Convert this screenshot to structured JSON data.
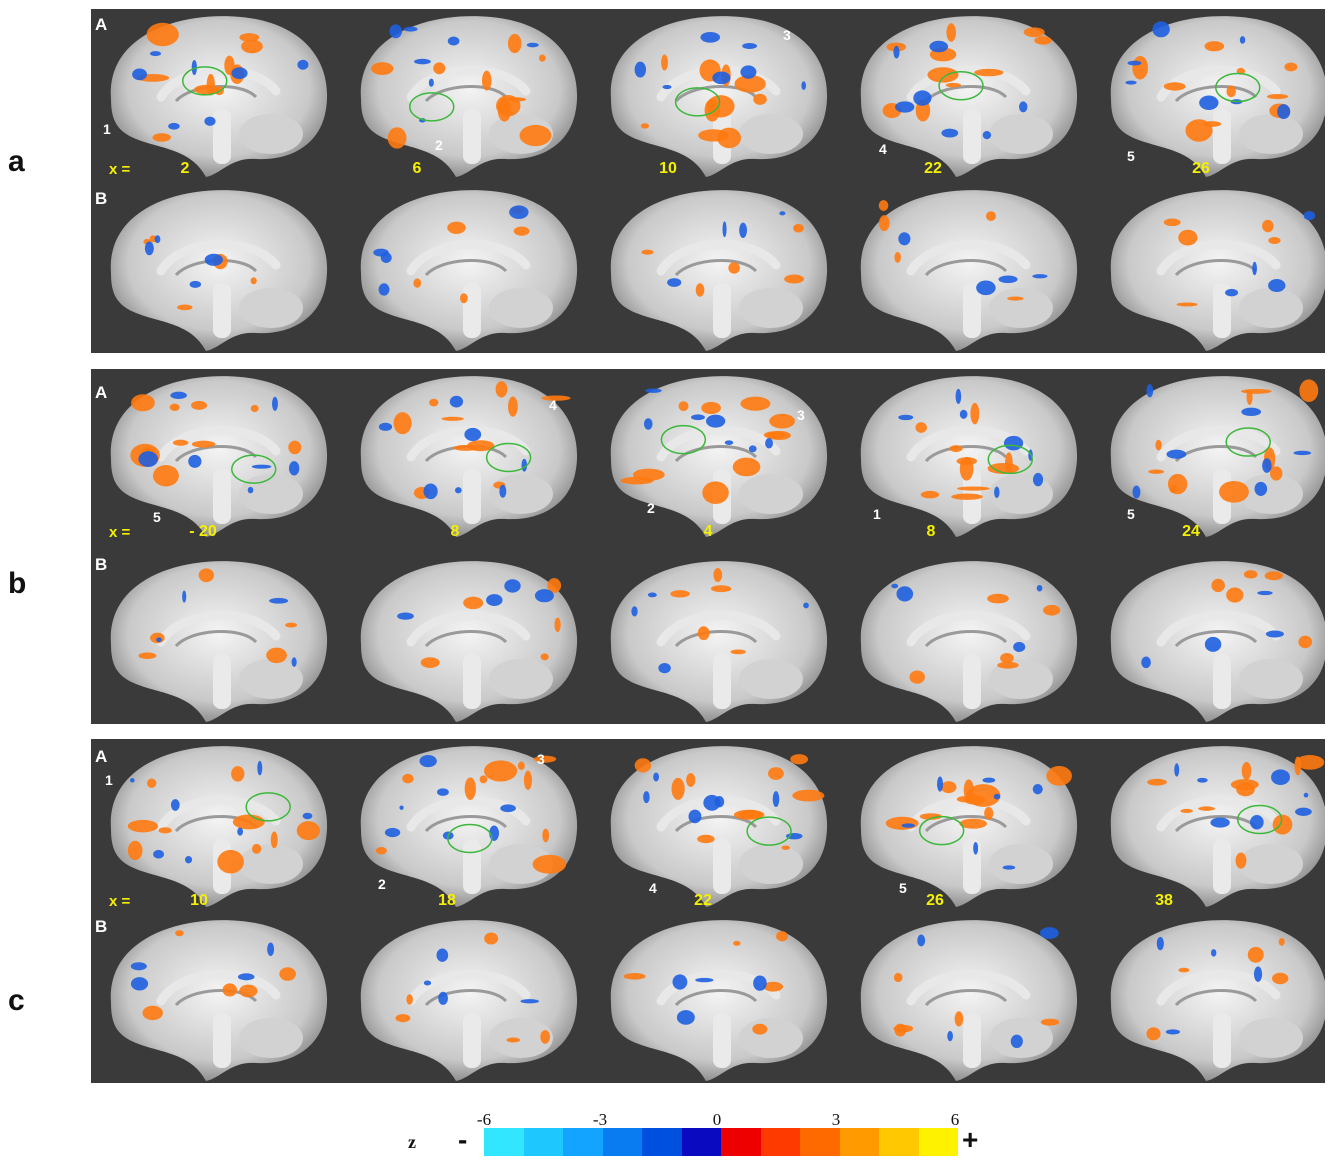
{
  "panels": [
    {
      "letter": "a",
      "row_a": "A",
      "row_b": "B",
      "x_prefix": "x =",
      "x_values": [
        "2",
        "6",
        "10",
        "22",
        "26"
      ],
      "roi_labels": [
        "1",
        "2",
        "3",
        "4",
        "5"
      ]
    },
    {
      "letter": "b",
      "row_a": "A",
      "row_b": "B",
      "x_prefix": "x =",
      "x_values": [
        "- 20",
        "8",
        "4",
        "8",
        "24"
      ],
      "roi_labels": [
        "5",
        "4",
        "2",
        "3",
        "1",
        "5"
      ]
    },
    {
      "letter": "c",
      "row_a": "A",
      "row_b": "B",
      "x_prefix": "x =",
      "x_values": [
        "10",
        "18",
        "22",
        "26",
        "38"
      ],
      "roi_labels": [
        "1",
        "2",
        "3",
        "4",
        "5"
      ]
    }
  ],
  "colorbar": {
    "label": "z",
    "minus": "-",
    "plus": "+",
    "ticks": [
      "-6",
      "-3",
      "0",
      "3",
      "6"
    ],
    "colors": [
      "#33e6ff",
      "#1ec8ff",
      "#12a4ff",
      "#0a7cf2",
      "#0050e0",
      "#0a0ac0",
      "#ee0000",
      "#ff3a00",
      "#ff6a00",
      "#ff9a00",
      "#ffc800",
      "#fff200"
    ],
    "activation_positive": "#ff7a10",
    "activation_negative": "#1e5fe0",
    "roi_outline": "#3cb83c"
  }
}
